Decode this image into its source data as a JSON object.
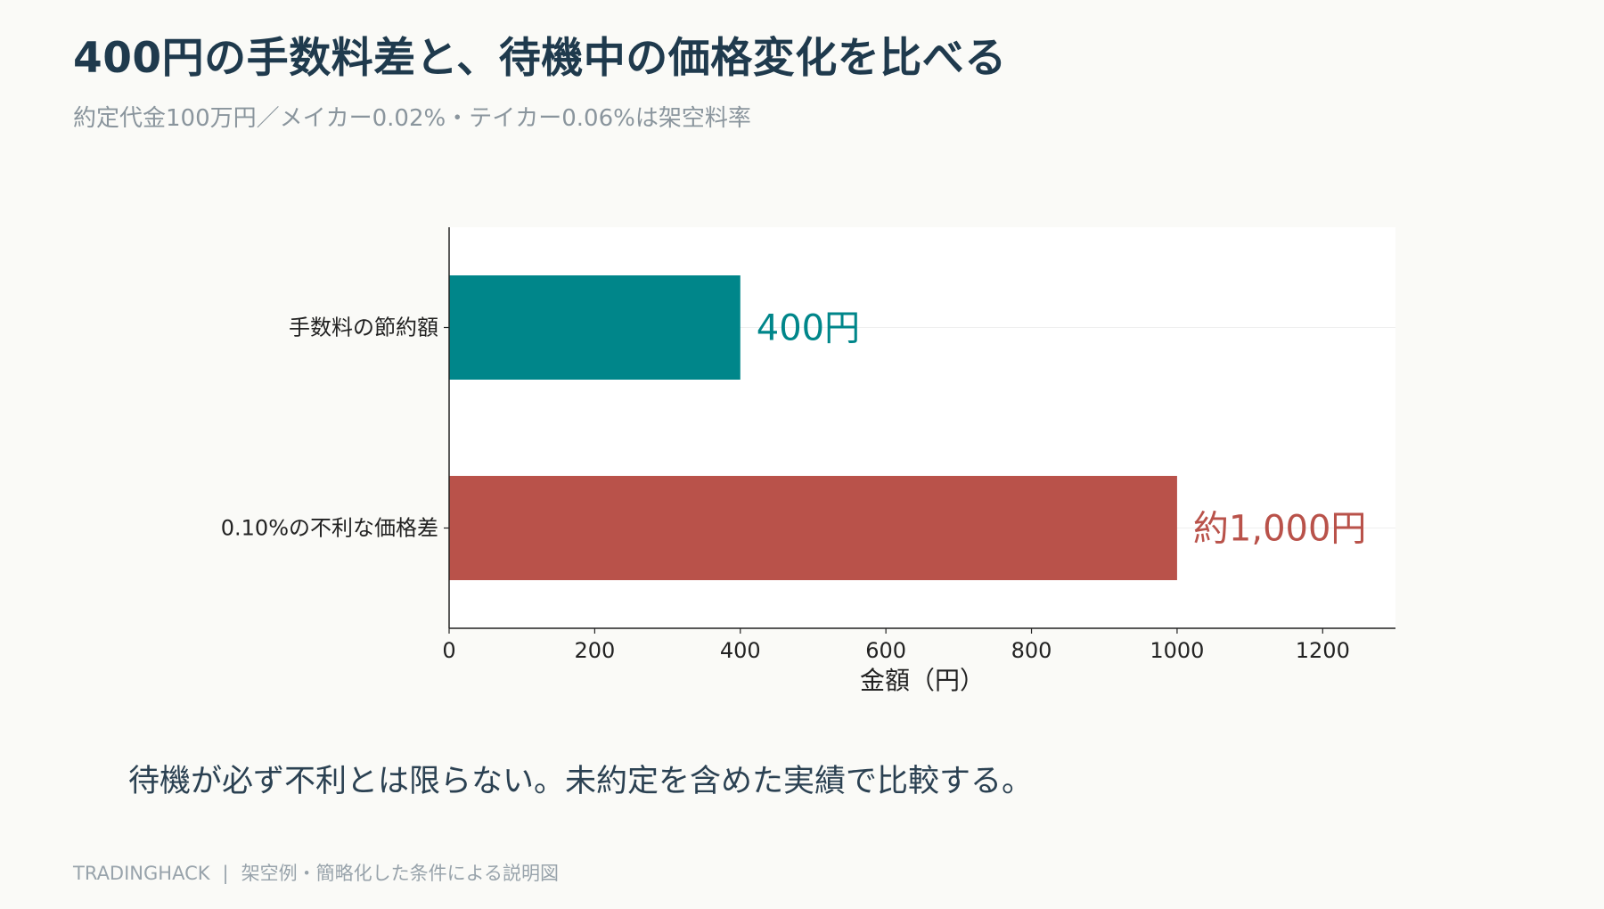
{
  "header": {
    "title": "400円の手数料差と、待機中の価格変化を比べる",
    "subtitle": "約定代金100万円／メイカー0.02%・テイカー0.06%は架空料率"
  },
  "chart_data": {
    "type": "bar",
    "orientation": "horizontal",
    "categories": [
      "手数料の節約額",
      "0.10%の不利な価格差"
    ],
    "values": [
      400,
      1000
    ],
    "value_labels": [
      "400円",
      "約1,000円"
    ],
    "colors": [
      "#00868a",
      "#b9524a"
    ],
    "xlabel": "金額（円）",
    "ylabel": "",
    "xlim": [
      0,
      1300
    ],
    "xticks": [
      0,
      200,
      400,
      600,
      800,
      1000,
      1200
    ],
    "grid": true,
    "legend": "none"
  },
  "takeaway": "待機が必ず不利とは限らない。未約定を含めた実績で比較する。",
  "footer": {
    "brand": "TRADINGHACK",
    "separator": "|",
    "note": "架空例・簡略化した条件による説明図"
  }
}
